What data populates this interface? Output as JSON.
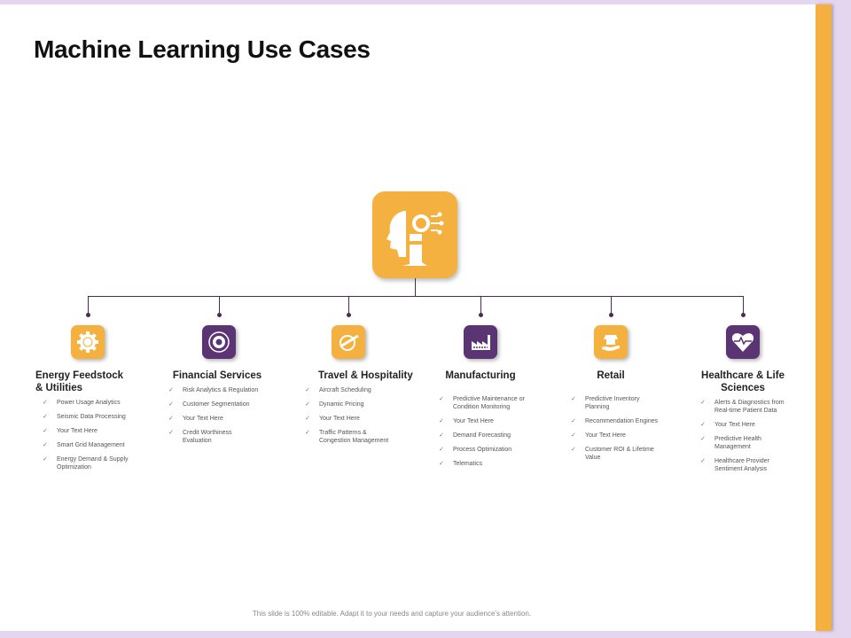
{
  "title": "Machine Learning Use Cases",
  "footer": "This slide is 100% editable. Adapt it to your needs and capture your audience's attention.",
  "colors": {
    "orange": "#f4b13f",
    "purple": "#5b3474",
    "line": "#4b2a55"
  },
  "hub": {
    "icon": "ai-head-gear-icon"
  },
  "categories": [
    {
      "title": "Energy Feedstock & Utilities",
      "icon": "gear-gauge-icon",
      "items": [
        "Power Usage Analytics",
        "Seismic Data Processing",
        "Your Text Here",
        "Smart Grid Management",
        "Energy Demand & Supply Optimization"
      ]
    },
    {
      "title": "Financial Services",
      "icon": "dollar-gear-cycle-icon",
      "items": [
        "Risk Analytics & Regulation",
        "Customer Segmentation",
        "Your Text Here",
        "Credit Worthiness Evaluation"
      ]
    },
    {
      "title": "Travel & Hospitality",
      "icon": "globe-airplane-icon",
      "items": [
        "Aircraft Scheduling",
        "Dynamic Pricing",
        "Your Text Here",
        "Traffic Patterns & Congestion Management"
      ]
    },
    {
      "title": "Manufacturing",
      "icon": "factory-icon",
      "items": [
        "Predictive Maintenance or Condition Monitoring",
        "Your Text Here",
        "Demand Forecasting",
        "Process Optimization",
        "Telematics"
      ]
    },
    {
      "title": "Retail",
      "icon": "hand-store-icon",
      "items": [
        "Predictive Inventory Planning",
        "Recommendation Engines",
        "Your Text Here",
        "Customer ROI & Lifetime Value"
      ]
    },
    {
      "title": "Healthcare & Life Sciences",
      "icon": "heart-pulse-icon",
      "items": [
        "Alerts & Diagnostics from Real-time Patient Data",
        "Your Text Here",
        "Predictive Health Management",
        "Healthcare Provider Sentiment Analysis"
      ]
    }
  ]
}
